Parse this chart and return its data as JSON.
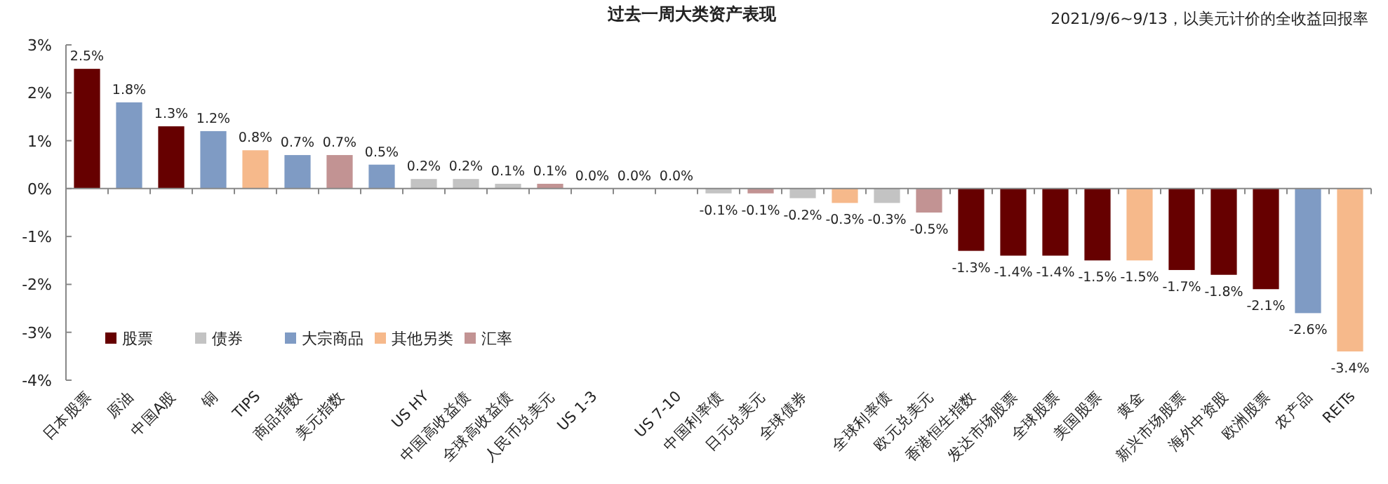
{
  "chart_data": {
    "type": "bar",
    "title": "过去一周大类资产表现",
    "subtitle": "2021/9/6~9/13，以美元计价的全收益回报率",
    "legend": "bottom left",
    "categories": [
      "日本股票",
      "原油",
      "中国A股",
      "铜",
      "TIPS",
      "商品指数",
      "美元指数",
      null,
      "US HY",
      "中国高收益债",
      "全球高收益债",
      "人民币兑美元",
      "US 1-3",
      null,
      "US 7-10",
      "中国利率债",
      "日元兑美元",
      "全球债券",
      null,
      "全球利率债",
      "欧元兑美元",
      "香港恒生指数",
      "发达市场股票",
      "全球股票",
      "美国股票",
      "黄金",
      "新兴市场股票",
      "海外中资股",
      "欧洲股票",
      "农产品",
      "REITs"
    ],
    "ylim": [
      -4,
      3
    ],
    "yticks": [
      {
        "value": -4,
        "label": "-4%"
      },
      {
        "value": -3,
        "label": "-3%"
      },
      {
        "value": -2,
        "label": "-2%"
      },
      {
        "value": -1,
        "label": "-1%"
      },
      {
        "value": 0,
        "label": "0%"
      },
      {
        "value": 1,
        "label": "1%"
      },
      {
        "value": 2,
        "label": "2%"
      },
      {
        "value": 3,
        "label": "3%"
      }
    ],
    "series": [
      {
        "name": "股票",
        "color": "#660000",
        "values": [
          2.5,
          null,
          1.3,
          null,
          null,
          null,
          null,
          null,
          null,
          null,
          null,
          null,
          null,
          null,
          null,
          null,
          null,
          null,
          null,
          null,
          null,
          -1.3,
          -1.4,
          -1.4,
          -1.5,
          null,
          -1.7,
          -1.8,
          -2.1,
          null,
          null
        ],
        "value_labels": [
          "2.5%",
          null,
          "1.3%",
          null,
          null,
          null,
          null,
          null,
          null,
          null,
          null,
          null,
          null,
          null,
          null,
          null,
          null,
          null,
          null,
          null,
          null,
          "-1.3%",
          "-1.4%",
          "-1.4%",
          "-1.5%",
          null,
          "-1.7%",
          "-1.8%",
          "-2.1%",
          null,
          null
        ]
      },
      {
        "name": "债券",
        "color": "#c3c3c3",
        "values": [
          null,
          null,
          null,
          null,
          null,
          null,
          null,
          null,
          0.2,
          0.2,
          0.1,
          null,
          0.0,
          null,
          0.0,
          -0.1,
          null,
          -0.2,
          null,
          -0.3,
          null,
          null,
          null,
          null,
          null,
          null,
          null,
          null,
          null,
          null,
          null
        ],
        "value_labels": [
          null,
          null,
          null,
          null,
          null,
          null,
          null,
          null,
          "0.2%",
          "0.2%",
          "0.1%",
          null,
          "0.0%",
          null,
          "0.0%",
          "-0.1%",
          null,
          "-0.2%",
          null,
          "-0.3%",
          null,
          null,
          null,
          null,
          null,
          null,
          null,
          null,
          null,
          null,
          null
        ]
      },
      {
        "name": "大宗商品",
        "color": "#7f9bc4",
        "values": [
          null,
          1.8,
          null,
          1.2,
          null,
          0.7,
          null,
          0.5,
          null,
          null,
          null,
          null,
          null,
          null,
          null,
          null,
          null,
          null,
          null,
          null,
          null,
          null,
          null,
          null,
          null,
          null,
          null,
          null,
          null,
          -2.6,
          null
        ],
        "value_labels": [
          null,
          "1.8%",
          null,
          "1.2%",
          null,
          "0.7%",
          null,
          "0.5%",
          null,
          null,
          null,
          null,
          null,
          null,
          null,
          null,
          null,
          null,
          null,
          null,
          null,
          null,
          null,
          null,
          null,
          null,
          null,
          null,
          null,
          "-2.6%",
          null
        ]
      },
      {
        "name": "其他另类",
        "color": "#f6b98b",
        "values": [
          null,
          null,
          null,
          null,
          0.8,
          null,
          null,
          null,
          null,
          null,
          null,
          null,
          null,
          0.0,
          null,
          null,
          null,
          null,
          -0.3,
          null,
          null,
          null,
          null,
          null,
          null,
          -1.5,
          null,
          null,
          null,
          null,
          -3.4
        ],
        "value_labels": [
          null,
          null,
          null,
          null,
          "0.8%",
          null,
          null,
          null,
          null,
          null,
          null,
          null,
          null,
          "0.0%",
          null,
          null,
          null,
          null,
          "-0.3%",
          null,
          null,
          null,
          null,
          null,
          null,
          "-1.5%",
          null,
          null,
          null,
          null,
          "-3.4%"
        ]
      },
      {
        "name": "汇率",
        "color": "#c29393",
        "values": [
          null,
          null,
          null,
          null,
          null,
          null,
          0.7,
          null,
          null,
          null,
          null,
          0.1,
          null,
          null,
          null,
          null,
          -0.1,
          null,
          null,
          null,
          -0.5,
          null,
          null,
          null,
          null,
          null,
          null,
          null,
          null,
          null,
          null
        ],
        "value_labels": [
          null,
          null,
          null,
          null,
          null,
          null,
          "0.7%",
          null,
          null,
          null,
          null,
          "0.1%",
          null,
          null,
          null,
          null,
          "-0.1%",
          null,
          null,
          null,
          "-0.5%",
          null,
          null,
          null,
          null,
          null,
          null,
          null,
          null,
          null,
          null
        ]
      }
    ]
  }
}
